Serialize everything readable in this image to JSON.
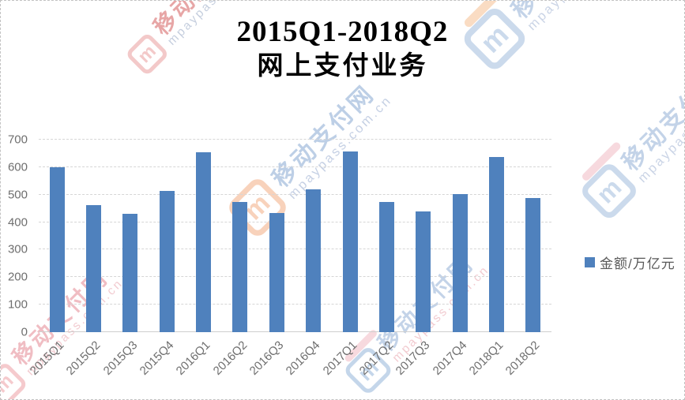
{
  "watermark": {
    "brand": "移动支付网",
    "domain": "mpaypass.com.cn",
    "logo_glyph": "m"
  },
  "chart_data": {
    "type": "bar",
    "title_lines": [
      "2015Q1-2018Q2",
      "网上支付业务"
    ],
    "categories": [
      "2015Q1",
      "2015Q2",
      "2015Q3",
      "2015Q4",
      "2016Q1",
      "2016Q2",
      "2016Q3",
      "2016Q4",
      "2017Q1",
      "2017Q2",
      "2017Q3",
      "2017Q4",
      "2018Q1",
      "2018Q2"
    ],
    "series": [
      {
        "name": "金额/万亿元",
        "color": "#4f81bd",
        "values": [
          600,
          461,
          431,
          515,
          655,
          472,
          433,
          518,
          657,
          473,
          440,
          501,
          636,
          488
        ]
      }
    ],
    "xlabel": "",
    "ylabel": "",
    "ylim": [
      0,
      700
    ],
    "yticks": [
      0,
      100,
      200,
      300,
      400,
      500,
      600,
      700
    ],
    "grid": true,
    "gridline_style": "dashed",
    "legend_position": "right",
    "axis_text_color": "#6e6e6e",
    "background": "#ffffff"
  }
}
